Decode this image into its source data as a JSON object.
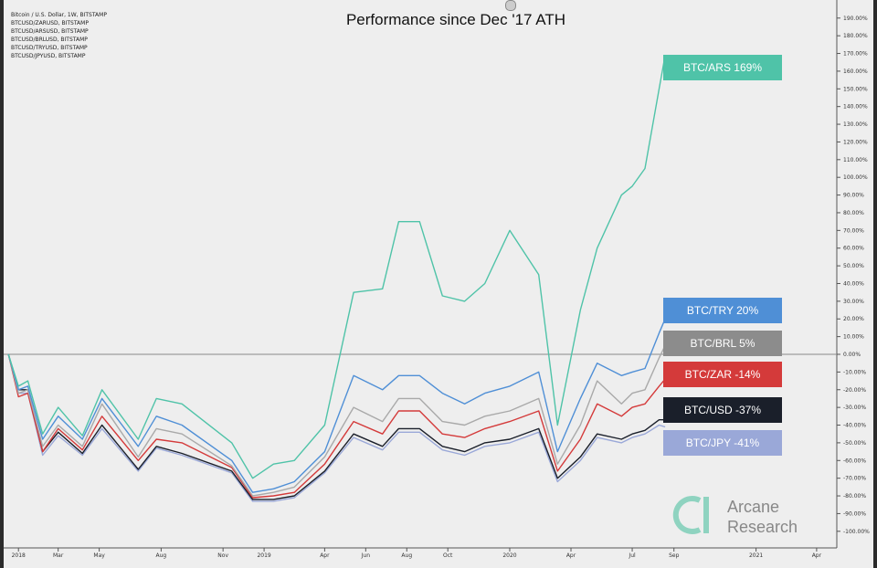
{
  "title": "Performance since Dec '17 ATH",
  "sources": [
    "Bitcoin / U.S. Dollar, 1W, BITSTAMP",
    "BTCUSD/ZARUSD, BITSTAMP",
    "BTCUSD/ARSUSD, BITSTAMP",
    "BTCUSD/BRLUSD, BITSTAMP",
    "BTCUSD/TRYUSD, BITSTAMP",
    "BTCUSD/JPYUSD, BITSTAMP"
  ],
  "logo": {
    "line1": "Arcane",
    "line2": "Research"
  },
  "chart_data": {
    "type": "line",
    "title": "Performance since Dec '17 ATH",
    "xlabel": "",
    "ylabel": "",
    "ylim": [
      -100,
      195
    ],
    "x_tick_labels": [
      "2018",
      "Mar",
      "May",
      "Aug",
      "Nov",
      "2019",
      "Apr",
      "Jun",
      "Aug",
      "Oct",
      "2020",
      "Apr",
      "Jul",
      "Sep",
      "2021",
      "Apr"
    ],
    "y_ticks": [
      190,
      180,
      170,
      160,
      150,
      140,
      130,
      120,
      110,
      100,
      90,
      80,
      70,
      60,
      50,
      40,
      30,
      20,
      10,
      0,
      -10,
      -20,
      -30,
      -40,
      -50,
      -60,
      -70,
      -80,
      -90,
      -100
    ],
    "x_dates": [
      "2017-12-17",
      "2018-01-01",
      "2018-01-15",
      "2018-02-06",
      "2018-03-01",
      "2018-04-06",
      "2018-05-05",
      "2018-06-28",
      "2018-07-25",
      "2018-09-01",
      "2018-11-14",
      "2018-12-15",
      "2019-01-15",
      "2019-02-15",
      "2019-04-01",
      "2019-05-14",
      "2019-06-26",
      "2019-07-20",
      "2019-08-20",
      "2019-09-23",
      "2019-10-26",
      "2019-11-25",
      "2020-01-01",
      "2020-02-13",
      "2020-03-12",
      "2020-04-15",
      "2020-05-10",
      "2020-06-15",
      "2020-07-01",
      "2020-07-20",
      "2020-08-10",
      "2020-08-19"
    ],
    "series": [
      {
        "name": "BTC/ARS",
        "label": "BTC/ARS 169%",
        "color": "#4fc3a8",
        "values": [
          0,
          -18,
          -15,
          -45,
          -30,
          -46,
          -20,
          -48,
          -25,
          -28,
          -50,
          -70,
          -62,
          -60,
          -40,
          35,
          37,
          75,
          75,
          33,
          30,
          40,
          70,
          45,
          -40,
          25,
          60,
          90,
          95,
          105,
          150,
          169
        ]
      },
      {
        "name": "BTC/TRY",
        "label": "BTC/TRY 20%",
        "color": "#4f8fd6",
        "values": [
          0,
          -20,
          -18,
          -48,
          -35,
          -48,
          -25,
          -52,
          -35,
          -40,
          -60,
          -78,
          -76,
          -72,
          -55,
          -12,
          -20,
          -12,
          -12,
          -22,
          -28,
          -22,
          -18,
          -10,
          -55,
          -25,
          -5,
          -12,
          -10,
          -8,
          12,
          20
        ]
      },
      {
        "name": "BTC/BRL",
        "label": "BTC/BRL 5%",
        "color": "#a9a9a9",
        "values": [
          0,
          -22,
          -20,
          -52,
          -40,
          -52,
          -28,
          -58,
          -42,
          -45,
          -63,
          -80,
          -78,
          -75,
          -58,
          -30,
          -38,
          -25,
          -25,
          -38,
          -40,
          -35,
          -32,
          -25,
          -62,
          -40,
          -15,
          -28,
          -22,
          -20,
          -2,
          5
        ]
      },
      {
        "name": "BTC/ZAR",
        "label": "BTC/ZAR -14%",
        "color": "#d43a3a",
        "values": [
          0,
          -24,
          -22,
          -55,
          -42,
          -54,
          -35,
          -60,
          -48,
          -50,
          -64,
          -81,
          -80,
          -78,
          -62,
          -38,
          -45,
          -32,
          -32,
          -45,
          -47,
          -42,
          -38,
          -32,
          -66,
          -48,
          -28,
          -35,
          -30,
          -28,
          -18,
          -14
        ]
      },
      {
        "name": "BTC/USD",
        "label": "BTC/USD -37%",
        "color": "#1a1f2a",
        "values": [
          0,
          -20,
          -20,
          -55,
          -44,
          -56,
          -40,
          -65,
          -52,
          -56,
          -66,
          -82,
          -82,
          -80,
          -66,
          -45,
          -52,
          -42,
          -42,
          -52,
          -55,
          -50,
          -48,
          -42,
          -70,
          -58,
          -45,
          -48,
          -45,
          -43,
          -37,
          -37
        ]
      },
      {
        "name": "BTC/JPY",
        "label": "BTC/JPY -41%",
        "color": "#9aa8d8",
        "values": [
          0,
          -22,
          -22,
          -57,
          -46,
          -57,
          -42,
          -66,
          -53,
          -57,
          -67,
          -83,
          -83,
          -81,
          -67,
          -47,
          -54,
          -44,
          -44,
          -54,
          -57,
          -52,
          -50,
          -44,
          -72,
          -60,
          -47,
          -50,
          -47,
          -45,
          -40,
          -41
        ]
      }
    ]
  }
}
